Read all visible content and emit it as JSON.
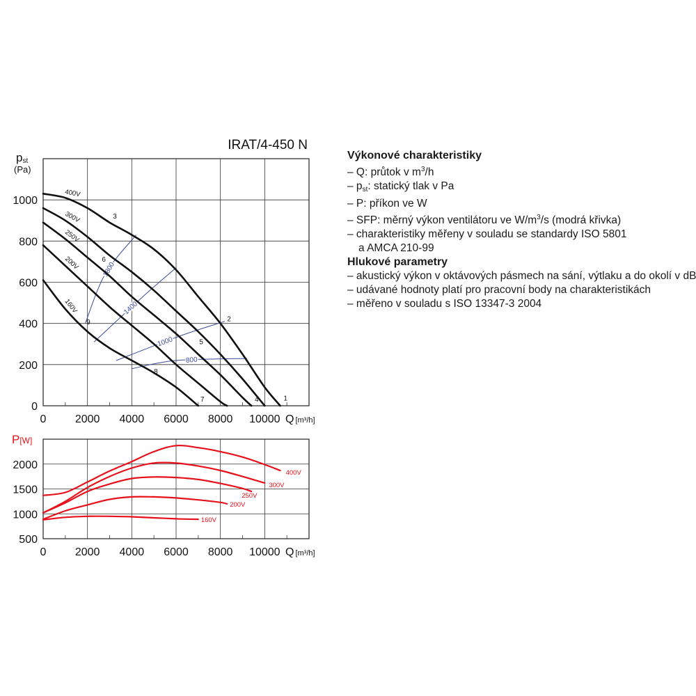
{
  "legend": {
    "perf_heading": "Výkonové charakteristiky",
    "q_pre": "– Q: průtok v m",
    "q_sup": "3",
    "q_post": "/h",
    "p_pre": "– p",
    "p_sub": "st",
    "p_post": ": statický tlak v Pa",
    "power": "– P: příkon ve W",
    "sfp_pre": "– SFP: měrný výkon ventilátoru ve W/m",
    "sfp_sup": "3",
    "sfp_post": "/s (modrá křivka)",
    "std1": "– charakteristiky měřeny v souladu se standardy ISO 5801",
    "std2": "a AMCA 210-99",
    "noise_heading": "Hlukové parametry",
    "noise1": "– akustický výkon v oktávových pásmech na sání, výtlaku a do okolí v dB(A)",
    "noise2": "– udávané hodnoty platí pro pracovní body na charakteristikách",
    "noise3": "– měřeno v souladu s ISO 13347-3 2004"
  },
  "chart_data": [
    {
      "type": "line",
      "title": "IRAT/4-450 N",
      "ylabel_main": "p",
      "ylabel_sub": "st",
      "ylabel_unit": "(Pa)",
      "xlabel_main": "Q",
      "xlabel_unit": "[m³/h]",
      "xlim": [
        0,
        12000
      ],
      "ylim": [
        0,
        1200
      ],
      "xticks": [
        0,
        2000,
        4000,
        6000,
        8000,
        10000
      ],
      "yticks": [
        0,
        200,
        400,
        600,
        800,
        1000
      ],
      "series_color": "#111111",
      "sfp_color": "#3a4a9a",
      "series": [
        {
          "name": "400V",
          "x": [
            0,
            1000,
            2000,
            3000,
            4000,
            5000,
            6000,
            7000,
            8000,
            9000,
            10000,
            10700
          ],
          "y": [
            1030,
            1010,
            960,
            890,
            830,
            760,
            660,
            530,
            400,
            250,
            90,
            0
          ]
        },
        {
          "name": "300V",
          "x": [
            0,
            1000,
            2000,
            3000,
            4000,
            5000,
            6000,
            7000,
            8000,
            9000,
            10000
          ],
          "y": [
            960,
            900,
            820,
            730,
            650,
            560,
            460,
            360,
            250,
            130,
            0
          ]
        },
        {
          "name": "250V",
          "x": [
            0,
            1000,
            2000,
            3000,
            4000,
            5000,
            6000,
            7000,
            8000,
            9000,
            9400
          ],
          "y": [
            890,
            810,
            720,
            630,
            530,
            440,
            350,
            250,
            150,
            40,
            0
          ]
        },
        {
          "name": "200V",
          "x": [
            0,
            1000,
            2000,
            3000,
            4000,
            5000,
            6000,
            7000,
            8000,
            8300
          ],
          "y": [
            780,
            680,
            580,
            480,
            390,
            300,
            200,
            110,
            20,
            0
          ]
        },
        {
          "name": "160V",
          "x": [
            0,
            1000,
            2000,
            3000,
            4000,
            5000,
            6000,
            7000
          ],
          "y": [
            610,
            470,
            360,
            280,
            220,
            160,
            90,
            0
          ]
        }
      ],
      "sfp_curves": [
        {
          "name": "1800",
          "x": [
            1900,
            2800,
            4200
          ],
          "y": [
            400,
            640,
            830
          ]
        },
        {
          "name": "1400",
          "x": [
            2300,
            4500,
            6000
          ],
          "y": [
            310,
            530,
            670
          ]
        },
        {
          "name": "1000",
          "x": [
            3300,
            6200,
            8200
          ],
          "y": [
            220,
            340,
            410
          ]
        },
        {
          "name": "800",
          "x": [
            4000,
            6000,
            9200
          ],
          "y": [
            180,
            220,
            230
          ]
        }
      ],
      "sfp_label_x": [
        2960,
        3950,
        5500,
        6700
      ],
      "point_labels": [
        {
          "label": "1",
          "x": 10850,
          "y": 25
        },
        {
          "label": "2",
          "x": 8300,
          "y": 410
        },
        {
          "label": "3",
          "x": 3150,
          "y": 910
        },
        {
          "label": "4",
          "x": 9550,
          "y": 20
        },
        {
          "label": "5",
          "x": 7050,
          "y": 300
        },
        {
          "label": "6",
          "x": 2650,
          "y": 700
        },
        {
          "label": "7",
          "x": 7100,
          "y": 20
        },
        {
          "label": "8",
          "x": 5000,
          "y": 155
        },
        {
          "label": "9",
          "x": 1950,
          "y": 395
        }
      ]
    },
    {
      "type": "line",
      "ylabel_main": "P",
      "ylabel_unit": "[W]",
      "xlabel_main": "Q",
      "xlabel_unit": "[m³/h]",
      "xlim": [
        0,
        12000
      ],
      "ylim": [
        500,
        2500
      ],
      "xticks": [
        0,
        2000,
        4000,
        6000,
        8000,
        10000
      ],
      "yticks": [
        500,
        1000,
        1500,
        2000
      ],
      "series_color": "#e8101a",
      "series": [
        {
          "name": "400V",
          "x": [
            0,
            1000,
            2000,
            3000,
            4000,
            5000,
            6000,
            7000,
            8000,
            9000,
            10000,
            10700
          ],
          "y": [
            1370,
            1430,
            1640,
            1860,
            2050,
            2250,
            2370,
            2330,
            2250,
            2140,
            1990,
            1870
          ]
        },
        {
          "name": "300V",
          "x": [
            0,
            1000,
            2000,
            3000,
            4000,
            5000,
            6000,
            7000,
            8000,
            9000,
            10000
          ],
          "y": [
            1020,
            1250,
            1530,
            1750,
            1920,
            2020,
            2020,
            1960,
            1870,
            1750,
            1620
          ]
        },
        {
          "name": "250V",
          "x": [
            0,
            1000,
            2000,
            3000,
            4000,
            5000,
            6000,
            7000,
            8000,
            9000,
            9400
          ],
          "y": [
            1020,
            1220,
            1450,
            1600,
            1710,
            1740,
            1730,
            1690,
            1610,
            1510,
            1450
          ]
        },
        {
          "name": "200V",
          "x": [
            0,
            1000,
            2000,
            3000,
            4000,
            5000,
            6000,
            7000,
            8000,
            8300
          ],
          "y": [
            890,
            1060,
            1180,
            1290,
            1340,
            1340,
            1320,
            1280,
            1230,
            1200
          ]
        },
        {
          "name": "160V",
          "x": [
            0,
            1000,
            2000,
            3000,
            4000,
            5000,
            6000,
            7000
          ],
          "y": [
            880,
            930,
            950,
            950,
            940,
            920,
            900,
            890
          ]
        }
      ]
    }
  ]
}
